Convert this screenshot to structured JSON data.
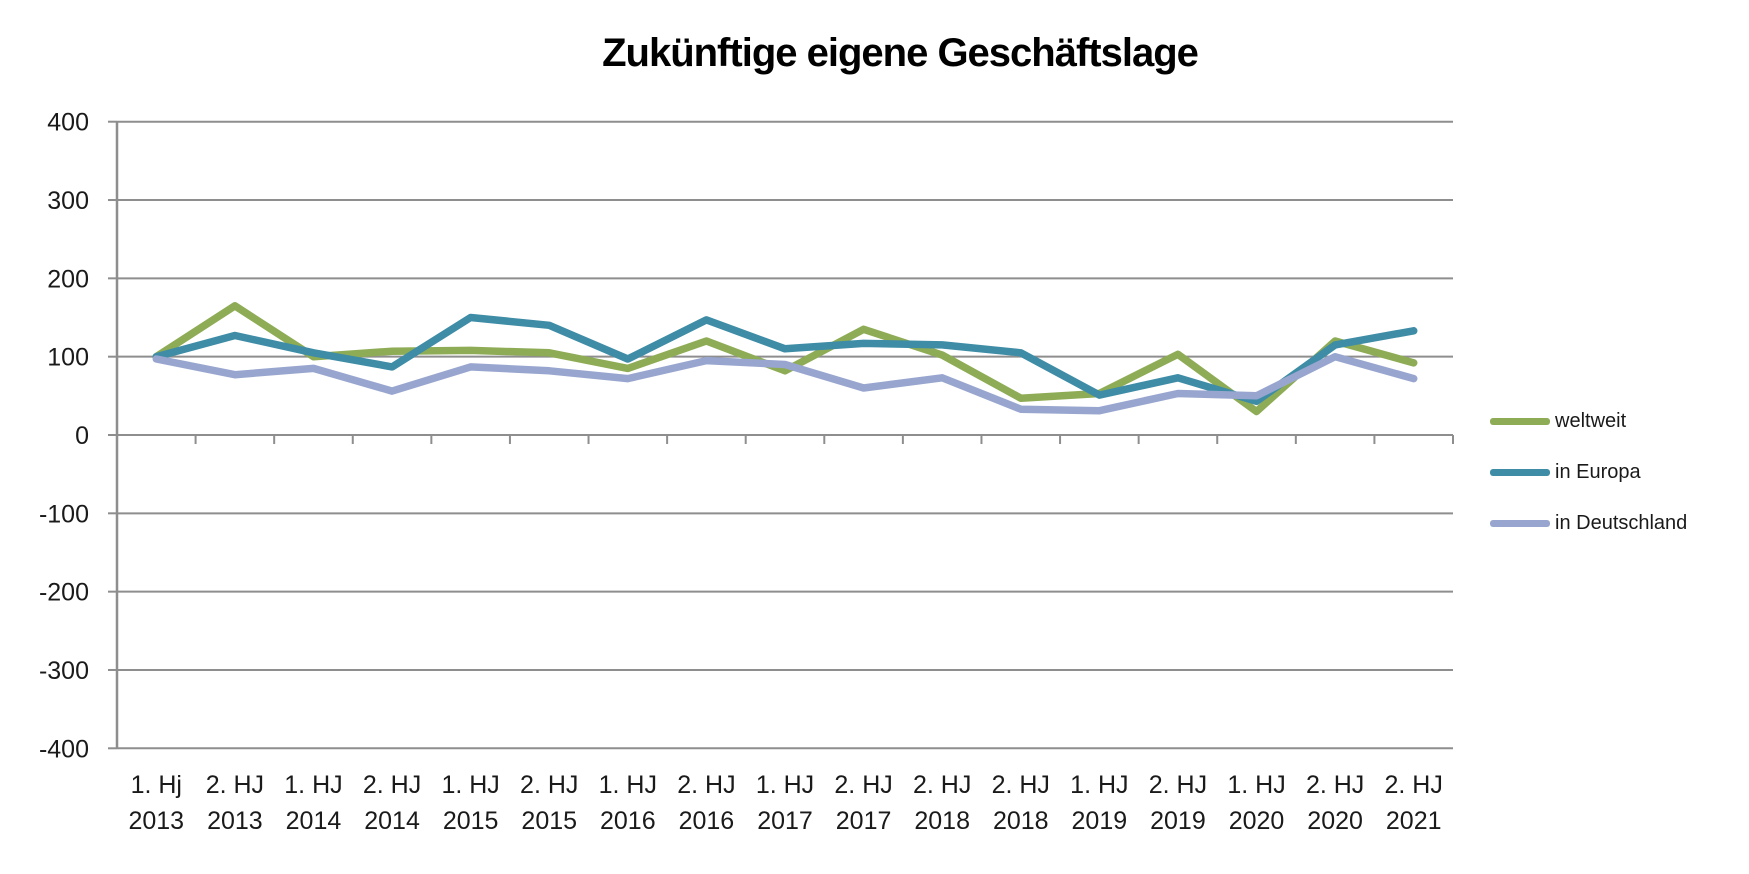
{
  "page": {
    "background": "#ffffff",
    "text_color": "#1a1a1a",
    "axis_color": "#8E8E8E"
  },
  "chart_data": {
    "type": "line",
    "title": "Zukünftige eigene Geschäftslage",
    "categories": [
      [
        "1. Hj",
        "2013"
      ],
      [
        "2. HJ",
        "2013"
      ],
      [
        "1. HJ",
        "2014"
      ],
      [
        "2. HJ",
        "2014"
      ],
      [
        "1. HJ",
        "2015"
      ],
      [
        "2. HJ",
        "2015"
      ],
      [
        "1. HJ",
        "2016"
      ],
      [
        "2. HJ",
        "2016"
      ],
      [
        "1. HJ",
        "2017"
      ],
      [
        "2. HJ",
        "2017"
      ],
      [
        "2. HJ",
        "2018"
      ],
      [
        "2. HJ",
        "2018"
      ],
      [
        "1. HJ",
        "2019"
      ],
      [
        "2. HJ",
        "2019"
      ],
      [
        "1. HJ",
        "2020"
      ],
      [
        "2. HJ",
        "2020"
      ],
      [
        "2. HJ",
        "2021"
      ]
    ],
    "series": [
      {
        "name": "weltweit",
        "color": "#8EAC55",
        "values": [
          100,
          165,
          100,
          107,
          108,
          105,
          85,
          120,
          82,
          135,
          102,
          47,
          53,
          103,
          30,
          120,
          92
        ]
      },
      {
        "name": "in Europa",
        "color": "#3E8CA6",
        "values": [
          100,
          127,
          105,
          87,
          150,
          140,
          97,
          147,
          110,
          117,
          115,
          105,
          51,
          73,
          43,
          115,
          133
        ]
      },
      {
        "name": "in Deutschland",
        "color": "#98A6CF",
        "values": [
          97,
          77,
          85,
          56,
          87,
          82,
          72,
          95,
          90,
          60,
          73,
          33,
          31,
          53,
          50,
          100,
          72
        ]
      }
    ],
    "ylim": [
      -400,
      400
    ],
    "yticks": [
      400,
      300,
      200,
      100,
      0,
      -100,
      -200,
      -300,
      -400
    ],
    "xlabel": "",
    "ylabel": "",
    "grid": "horizontal",
    "legend_position": "right"
  }
}
